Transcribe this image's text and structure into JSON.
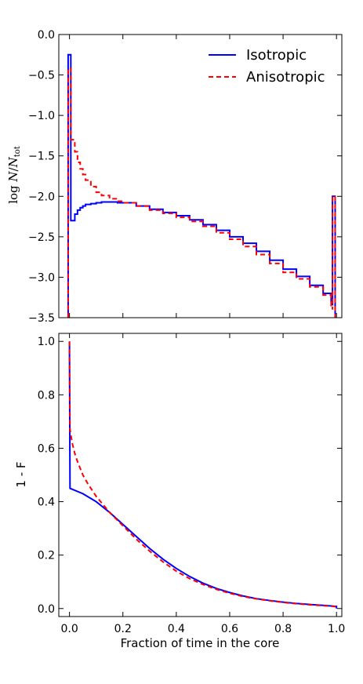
{
  "chart_data": [
    {
      "type": "line",
      "step": true,
      "title": "",
      "xlabel": "",
      "ylabel_parts": {
        "prefix": "log ",
        "numerator": "N",
        "slash": "/",
        "denominator": "N",
        "subscript": "tot"
      },
      "xlim": [
        -0.04,
        1.02
      ],
      "ylim": [
        -3.5,
        0.0
      ],
      "yticks": [
        0.0,
        -0.5,
        -1.0,
        -1.5,
        -2.0,
        -2.5,
        -3.0,
        -3.5
      ],
      "ytick_labels": [
        "0.0",
        "−0.5",
        "−1.0",
        "−1.5",
        "−2.0",
        "−2.5",
        "−3.0",
        "−3.5"
      ],
      "xticks": [
        0.0,
        0.2,
        0.4,
        0.6,
        0.8,
        1.0
      ],
      "legend": {
        "position": "top-right"
      },
      "grid": false,
      "series": [
        {
          "name": "Isotropic",
          "color": "#0000ff",
          "dash": "solid",
          "x": [
            -0.005,
            -0.005,
            0.005,
            0.005,
            0.01,
            0.02,
            0.03,
            0.04,
            0.05,
            0.06,
            0.08,
            0.1,
            0.12,
            0.15,
            0.18,
            0.2,
            0.25,
            0.3,
            0.35,
            0.4,
            0.45,
            0.5,
            0.55,
            0.6,
            0.65,
            0.7,
            0.75,
            0.8,
            0.85,
            0.9,
            0.95,
            0.98,
            0.985,
            0.985,
            0.995,
            0.995
          ],
          "y": [
            -3.5,
            -0.25,
            -0.25,
            -2.3,
            -2.3,
            -2.22,
            -2.17,
            -2.14,
            -2.12,
            -2.1,
            -2.09,
            -2.08,
            -2.07,
            -2.07,
            -2.08,
            -2.08,
            -2.12,
            -2.16,
            -2.2,
            -2.24,
            -2.29,
            -2.35,
            -2.42,
            -2.5,
            -2.58,
            -2.68,
            -2.79,
            -2.9,
            -2.99,
            -3.1,
            -3.2,
            -3.3,
            -3.35,
            -2.0,
            -2.0,
            -3.5
          ]
        },
        {
          "name": "Anisotropic",
          "color": "#ff0000",
          "dash": "dashed",
          "x": [
            -0.005,
            -0.005,
            0.005,
            0.005,
            0.01,
            0.02,
            0.03,
            0.04,
            0.05,
            0.06,
            0.08,
            0.1,
            0.12,
            0.15,
            0.18,
            0.2,
            0.25,
            0.3,
            0.35,
            0.4,
            0.45,
            0.5,
            0.55,
            0.6,
            0.65,
            0.7,
            0.75,
            0.8,
            0.85,
            0.9,
            0.95,
            0.98,
            0.985,
            0.985,
            0.995,
            0.995
          ],
          "y": [
            -3.5,
            -0.42,
            -0.42,
            -1.3,
            -1.3,
            -1.45,
            -1.58,
            -1.66,
            -1.73,
            -1.8,
            -1.88,
            -1.95,
            -1.99,
            -2.03,
            -2.06,
            -2.08,
            -2.12,
            -2.17,
            -2.21,
            -2.26,
            -2.31,
            -2.37,
            -2.45,
            -2.53,
            -2.62,
            -2.72,
            -2.83,
            -2.94,
            -3.02,
            -3.12,
            -3.22,
            -3.35,
            -3.4,
            -2.0,
            -2.0,
            -3.5
          ]
        }
      ]
    },
    {
      "type": "line",
      "title": "",
      "xlabel": "Fraction of time in the core",
      "ylabel": "1 - F",
      "xlim": [
        -0.04,
        1.02
      ],
      "ylim": [
        -0.03,
        1.03
      ],
      "yticks": [
        0.0,
        0.2,
        0.4,
        0.6,
        0.8,
        1.0
      ],
      "ytick_labels": [
        "0.0",
        "0.2",
        "0.4",
        "0.6",
        "0.8",
        "1.0"
      ],
      "xticks": [
        0.0,
        0.2,
        0.4,
        0.6,
        0.8,
        1.0
      ],
      "xtick_labels": [
        "0.0",
        "0.2",
        "0.4",
        "0.6",
        "0.8",
        "1.0"
      ],
      "grid": false,
      "series": [
        {
          "name": "Isotropic",
          "color": "#0000ff",
          "dash": "solid",
          "x": [
            0.0,
            0.0,
            0.002,
            0.05,
            0.1,
            0.15,
            0.2,
            0.25,
            0.3,
            0.35,
            0.4,
            0.45,
            0.5,
            0.55,
            0.6,
            0.65,
            0.7,
            0.75,
            0.8,
            0.85,
            0.9,
            0.95,
            1.0,
            1.0
          ],
          "y": [
            1.0,
            0.97,
            0.45,
            0.43,
            0.4,
            0.36,
            0.315,
            0.27,
            0.225,
            0.185,
            0.15,
            0.12,
            0.095,
            0.075,
            0.06,
            0.047,
            0.037,
            0.03,
            0.024,
            0.019,
            0.015,
            0.012,
            0.008,
            0.0
          ]
        },
        {
          "name": "Anisotropic",
          "color": "#ff0000",
          "dash": "dashed",
          "x": [
            0.0,
            0.0,
            0.002,
            0.01,
            0.02,
            0.03,
            0.05,
            0.07,
            0.1,
            0.15,
            0.2,
            0.25,
            0.3,
            0.35,
            0.4,
            0.45,
            0.5,
            0.55,
            0.6,
            0.65,
            0.7,
            0.75,
            0.8,
            0.85,
            0.9,
            0.95,
            1.0
          ],
          "y": [
            1.0,
            0.95,
            0.67,
            0.62,
            0.58,
            0.55,
            0.5,
            0.465,
            0.42,
            0.36,
            0.31,
            0.26,
            0.215,
            0.175,
            0.14,
            0.112,
            0.09,
            0.072,
            0.057,
            0.045,
            0.036,
            0.029,
            0.023,
            0.018,
            0.014,
            0.011,
            0.007
          ]
        }
      ]
    }
  ]
}
